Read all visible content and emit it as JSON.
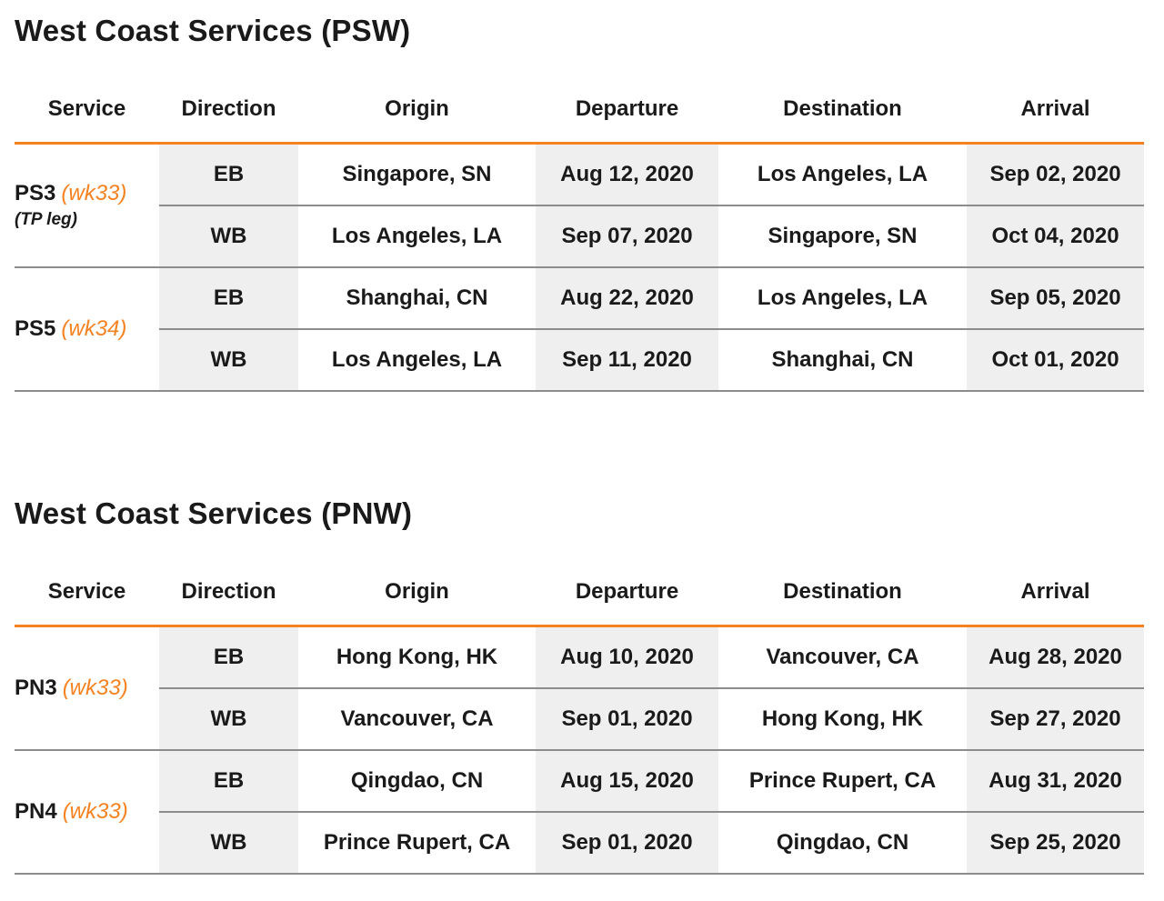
{
  "headers": [
    "Service",
    "Direction",
    "Origin",
    "Departure",
    "Destination",
    "Arrival"
  ],
  "psw": {
    "title": "West Coast Services (PSW)",
    "services": [
      {
        "name": "PS3",
        "week": "(wk33)",
        "note": "(TP leg)",
        "rows": [
          {
            "direction": "EB",
            "origin": "Singapore, SN",
            "departure": "Aug 12, 2020",
            "destination": "Los Angeles, LA",
            "arrival": "Sep 02, 2020"
          },
          {
            "direction": "WB",
            "origin": "Los Angeles, LA",
            "departure": "Sep 07, 2020",
            "destination": "Singapore, SN",
            "arrival": "Oct 04, 2020"
          }
        ]
      },
      {
        "name": "PS5",
        "week": "(wk34)",
        "rows": [
          {
            "direction": "EB",
            "origin": "Shanghai, CN",
            "departure": "Aug 22, 2020",
            "destination": "Los Angeles, LA",
            "arrival": "Sep 05, 2020"
          },
          {
            "direction": "WB",
            "origin": "Los Angeles, LA",
            "departure": "Sep 11, 2020",
            "destination": "Shanghai, CN",
            "arrival": "Oct 01, 2020"
          }
        ]
      }
    ]
  },
  "pnw": {
    "title": "West Coast Services (PNW)",
    "services": [
      {
        "name": "PN3",
        "week": "(wk33)",
        "rows": [
          {
            "direction": "EB",
            "origin": "Hong Kong, HK",
            "departure": "Aug 10, 2020",
            "destination": "Vancouver, CA",
            "arrival": "Aug 28, 2020"
          },
          {
            "direction": "WB",
            "origin": "Vancouver, CA",
            "departure": "Sep 01, 2020",
            "destination": "Hong Kong, HK",
            "arrival": "Sep 27, 2020"
          }
        ]
      },
      {
        "name": "PN4",
        "week": "(wk33)",
        "rows": [
          {
            "direction": "EB",
            "origin": "Qingdao, CN",
            "departure": "Aug 15, 2020",
            "destination": "Prince Rupert, CA",
            "arrival": "Aug 31, 2020"
          },
          {
            "direction": "WB",
            "origin": "Prince Rupert, CA",
            "departure": "Sep 01, 2020",
            "destination": "Qingdao, CN",
            "arrival": "Sep 25, 2020"
          }
        ]
      }
    ]
  },
  "colors": {
    "accent": "#f58220",
    "shade": "#efefef",
    "rule": "#8c8c8c"
  }
}
